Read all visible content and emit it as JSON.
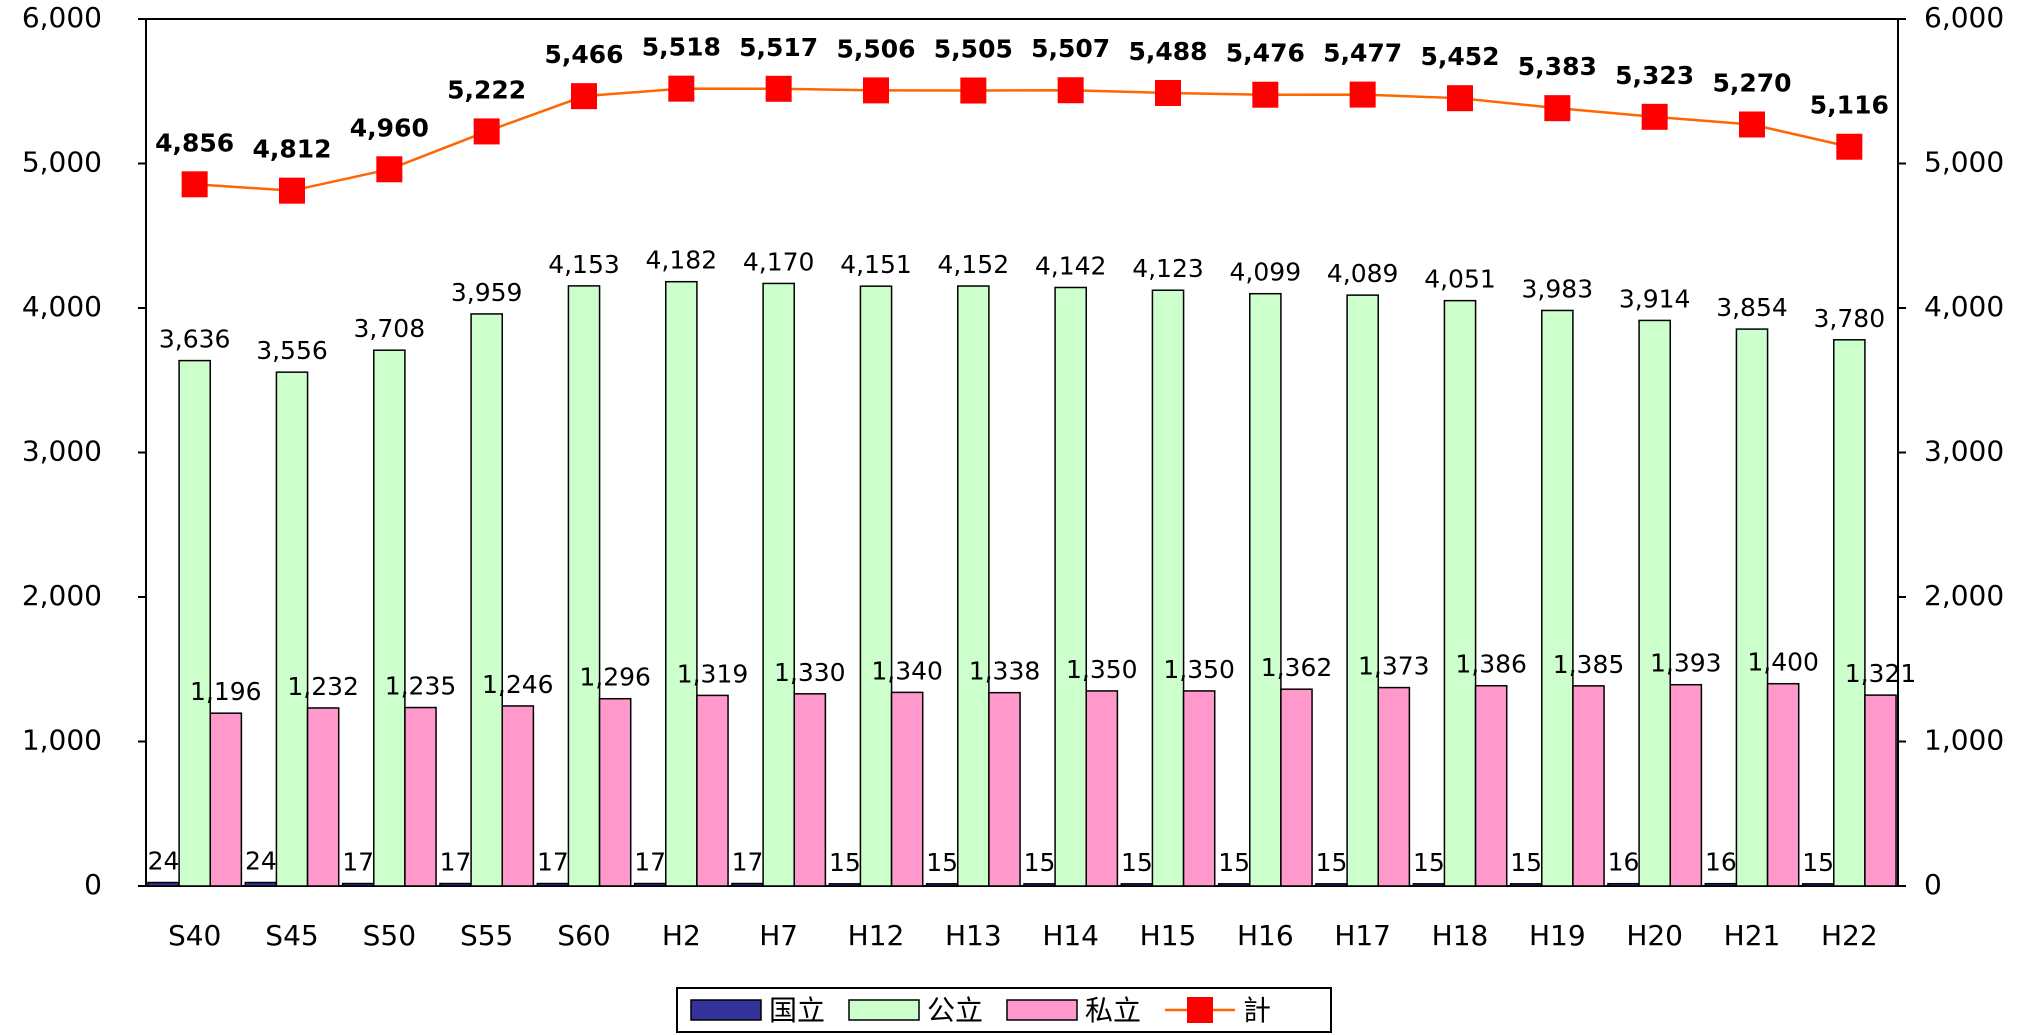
{
  "chart_data": {
    "type": "bar",
    "categories": [
      "S40",
      "S45",
      "S50",
      "S55",
      "S60",
      "H2",
      "H7",
      "H12",
      "H13",
      "H14",
      "H15",
      "H16",
      "H17",
      "H18",
      "H19",
      "H20",
      "H21",
      "H22"
    ],
    "series": [
      {
        "name": "国立",
        "color": "#333399",
        "values": [
          24,
          24,
          17,
          17,
          17,
          17,
          17,
          15,
          15,
          15,
          15,
          15,
          15,
          15,
          15,
          16,
          16,
          15
        ]
      },
      {
        "name": "公立",
        "color": "#ccffcc",
        "values": [
          3636,
          3556,
          3708,
          3959,
          4153,
          4182,
          4170,
          4151,
          4152,
          4142,
          4123,
          4099,
          4089,
          4051,
          3983,
          3914,
          3854,
          3780
        ],
        "value_labels": [
          "3,636",
          "3,556",
          "3,708",
          "3,959",
          "4,153",
          "4,182",
          "4,170",
          "4,151",
          "4,152",
          "4,142",
          "4,123",
          "4,099",
          "4,089",
          "4,051",
          "3,983",
          "3,914",
          "3,854",
          "3,780"
        ]
      },
      {
        "name": "私立",
        "color": "#ff99cc",
        "values": [
          1196,
          1232,
          1235,
          1246,
          1296,
          1319,
          1330,
          1340,
          1338,
          1350,
          1350,
          1362,
          1373,
          1386,
          1385,
          1393,
          1400,
          1321
        ],
        "value_labels": [
          "1,196",
          "1,232",
          "1,235",
          "1,246",
          "1,296",
          "1,319",
          "1,330",
          "1,340",
          "1,338",
          "1,350",
          "1,350",
          "1,362",
          "1,373",
          "1,386",
          "1,385",
          "1,393",
          "1,400",
          "1,321"
        ]
      },
      {
        "name": "計",
        "type": "line",
        "color": "#ff6600",
        "marker_color": "#ff0000",
        "values": [
          4856,
          4812,
          4960,
          5222,
          5466,
          5518,
          5517,
          5506,
          5505,
          5507,
          5488,
          5476,
          5477,
          5452,
          5383,
          5323,
          5270,
          5116
        ],
        "value_labels": [
          "4,856",
          "4,812",
          "4,960",
          "5,222",
          "5,466",
          "5,518",
          "5,517",
          "5,506",
          "5,505",
          "5,507",
          "5,488",
          "5,476",
          "5,477",
          "5,452",
          "5,383",
          "5,323",
          "5,270",
          "5,116"
        ]
      }
    ],
    "ylim": [
      0,
      6000
    ],
    "yticks": [
      0,
      {
        "value": 1000,
        "label": "1,000"
      },
      {
        "value": 2000,
        "label": "2,000"
      },
      {
        "value": 3000,
        "label": "3,000"
      },
      {
        "value": 4000,
        "label": "4,000"
      },
      {
        "value": 5000,
        "label": "5,000"
      },
      {
        "value": 6000,
        "label": "6,000"
      }
    ],
    "y2lim": [
      0,
      6000
    ],
    "y2ticks": [
      0,
      {
        "value": 1000,
        "label": "1,000"
      },
      {
        "value": 2000,
        "label": "2,000"
      },
      {
        "value": 3000,
        "label": "3,000"
      },
      {
        "value": 4000,
        "label": "4,000"
      },
      {
        "value": 5000,
        "label": "5,000"
      },
      {
        "value": 6000,
        "label": "6,000"
      }
    ],
    "grid": false,
    "legend": "bottom"
  }
}
